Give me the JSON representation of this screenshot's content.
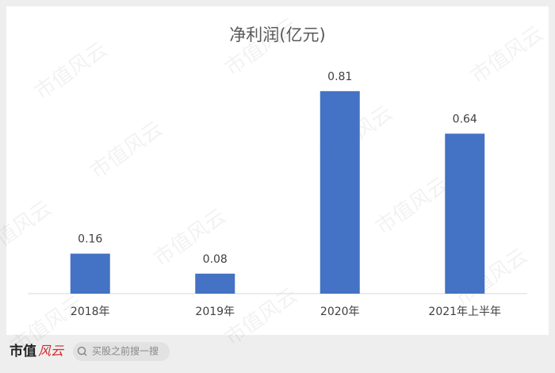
{
  "chart_data": {
    "type": "bar",
    "title": "净利润(亿元)",
    "categories": [
      "2018年",
      "2019年",
      "2020年",
      "2021年上半年"
    ],
    "values": [
      0.16,
      0.08,
      0.81,
      0.64
    ],
    "color": "#4472c4"
  },
  "watermark": "市值风云",
  "footer": {
    "logo_main": "市值",
    "logo_accent": "风云",
    "search": "买股之前搜一搜"
  }
}
